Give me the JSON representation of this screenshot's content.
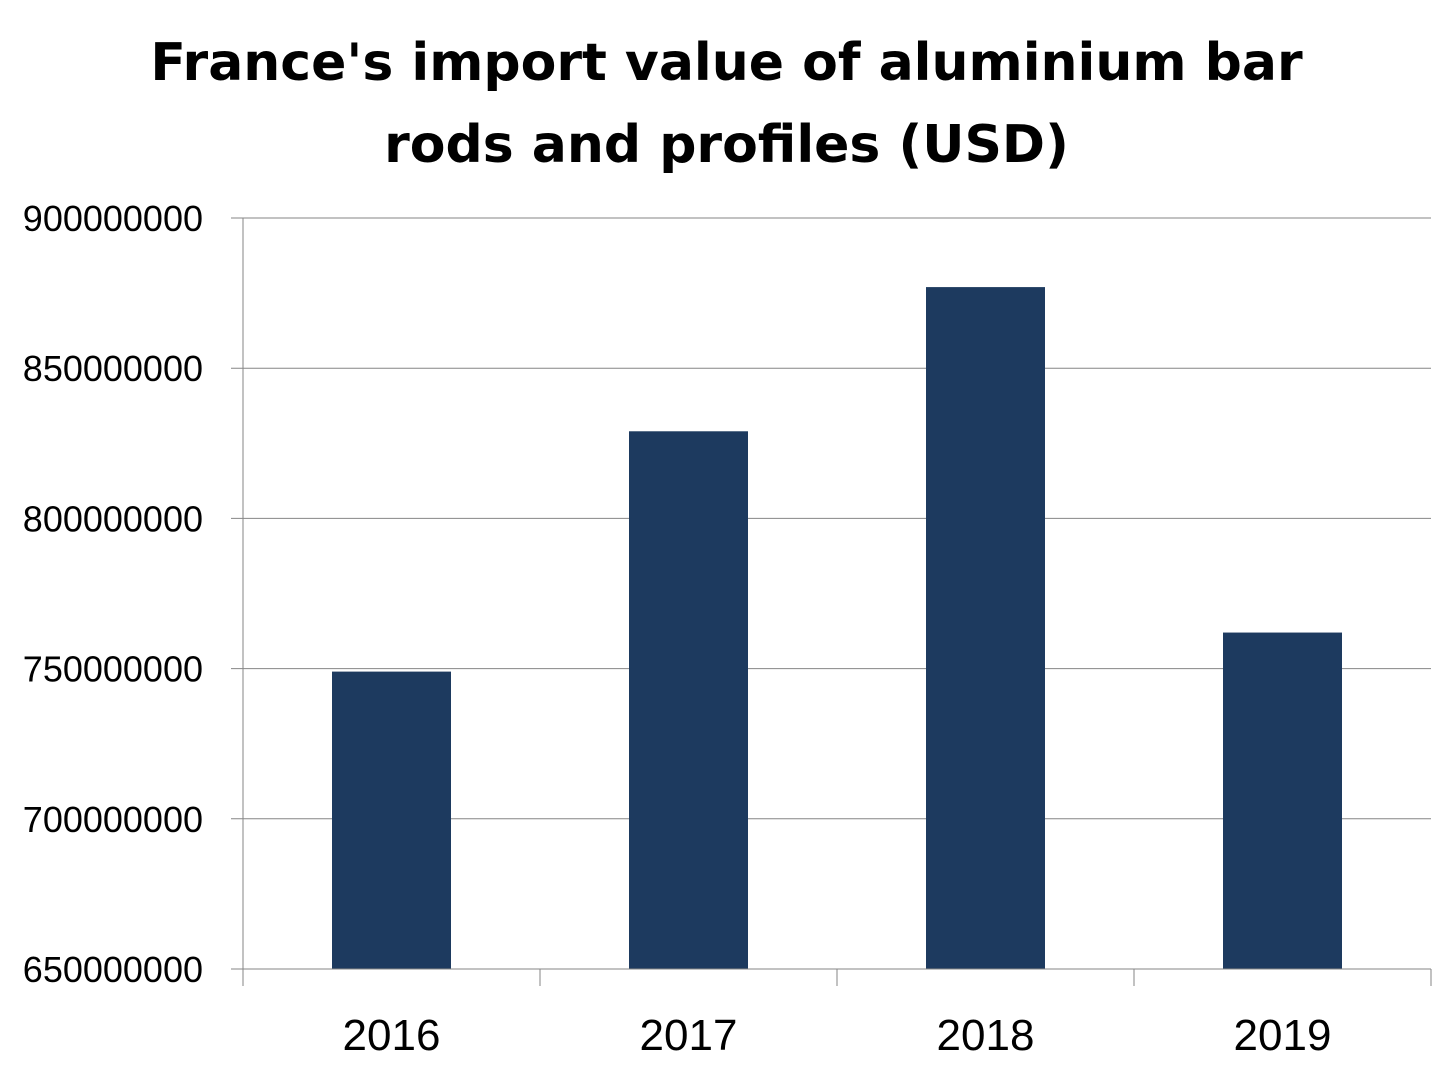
{
  "chart_data": {
    "type": "bar",
    "title_lines": [
      "France's import value of aluminium bar",
      "rods and profiles (USD)"
    ],
    "categories": [
      "2016",
      "2017",
      "2018",
      "2019"
    ],
    "values": [
      749000000,
      829000000,
      877000000,
      762000000
    ],
    "xlabel": "",
    "ylabel": "",
    "ylim": [
      650000000,
      900000000
    ],
    "y_ticks": [
      "650000000",
      "700000000",
      "750000000",
      "800000000",
      "850000000",
      "900000000"
    ],
    "grid": true,
    "legend": "none",
    "colors": {
      "bar": "#1d3a5f",
      "grid": "#868686",
      "axis": "#868686"
    }
  }
}
